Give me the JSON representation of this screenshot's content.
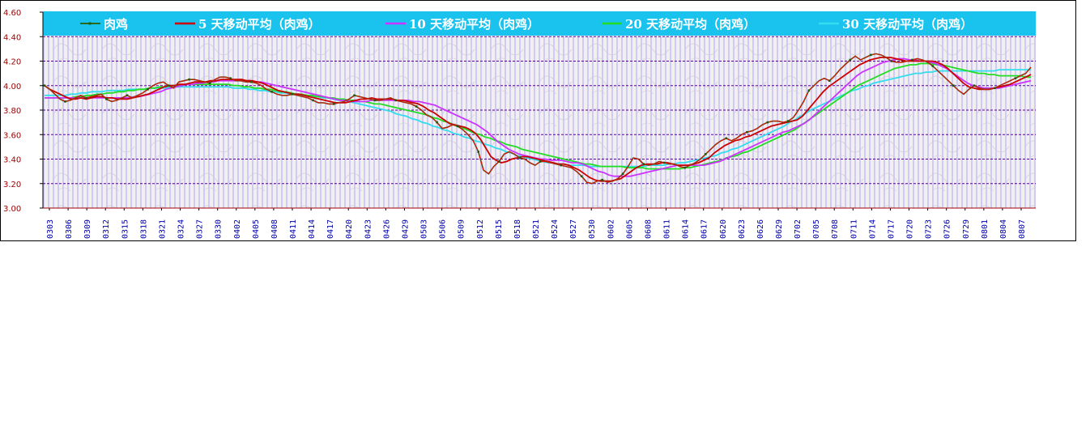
{
  "chart_data": {
    "type": "line",
    "title": "",
    "xlabel": "",
    "ylabel": "",
    "ylim": [
      3.0,
      4.6
    ],
    "yticks": [
      "3.00",
      "3.20",
      "3.40",
      "3.60",
      "3.80",
      "4.00",
      "4.20",
      "4.40",
      "4.60"
    ],
    "x_tick_labels": [
      "0303",
      "0306",
      "0309",
      "0312",
      "0315",
      "0318",
      "0321",
      "0324",
      "0327",
      "0330",
      "0402",
      "0405",
      "0408",
      "0411",
      "0414",
      "0417",
      "0420",
      "0423",
      "0426",
      "0429",
      "0503",
      "0506",
      "0509",
      "0512",
      "0515",
      "0518",
      "0521",
      "0524",
      "0527",
      "0530",
      "0602",
      "0605",
      "0608",
      "0611",
      "0614",
      "0617",
      "0620",
      "0623",
      "0626",
      "0629",
      "0702",
      "0705",
      "0708",
      "0711",
      "0714",
      "0717",
      "0720",
      "0723",
      "0726",
      "0729",
      "0801",
      "0804",
      "0807"
    ],
    "grid": true,
    "background_bars": true,
    "legend_position": "top",
    "series": [
      {
        "name": "肉鸡",
        "color": "#ff0000",
        "values": [
          4.0,
          3.97,
          3.93,
          3.89,
          3.87,
          3.88,
          3.9,
          3.92,
          3.9,
          3.91,
          3.92,
          3.93,
          3.89,
          3.87,
          3.88,
          3.9,
          3.92,
          3.9,
          3.92,
          3.94,
          3.97,
          4.0,
          4.02,
          4.03,
          4.0,
          3.98,
          4.03,
          4.04,
          4.05,
          4.05,
          4.04,
          4.03,
          4.02,
          4.05,
          4.07,
          4.07,
          4.06,
          4.04,
          4.04,
          4.03,
          4.03,
          4.02,
          4.0,
          3.97,
          3.95,
          3.93,
          3.92,
          3.92,
          3.93,
          3.92,
          3.91,
          3.9,
          3.88,
          3.86,
          3.86,
          3.85,
          3.85,
          3.86,
          3.87,
          3.89,
          3.92,
          3.91,
          3.9,
          3.89,
          3.88,
          3.88,
          3.89,
          3.9,
          3.88,
          3.87,
          3.86,
          3.85,
          3.83,
          3.8,
          3.76,
          3.74,
          3.7,
          3.65,
          3.66,
          3.68,
          3.67,
          3.64,
          3.6,
          3.55,
          3.46,
          3.31,
          3.28,
          3.34,
          3.38,
          3.44,
          3.46,
          3.44,
          3.41,
          3.4,
          3.37,
          3.35,
          3.38,
          3.38,
          3.37,
          3.36,
          3.35,
          3.34,
          3.33,
          3.3,
          3.26,
          3.21,
          3.2,
          3.22,
          3.23,
          3.21,
          3.22,
          3.24,
          3.28,
          3.34,
          3.41,
          3.4,
          3.36,
          3.35,
          3.36,
          3.38,
          3.37,
          3.36,
          3.36,
          3.34,
          3.33,
          3.35,
          3.37,
          3.4,
          3.44,
          3.48,
          3.52,
          3.55,
          3.57,
          3.55,
          3.57,
          3.6,
          3.62,
          3.63,
          3.65,
          3.68,
          3.7,
          3.71,
          3.71,
          3.7,
          3.71,
          3.74,
          3.8,
          3.87,
          3.96,
          4.0,
          4.04,
          4.06,
          4.04,
          4.08,
          4.13,
          4.17,
          4.21,
          4.24,
          4.21,
          4.23,
          4.25,
          4.26,
          4.25,
          4.23,
          4.2,
          4.19,
          4.19,
          4.2,
          4.21,
          4.22,
          4.21,
          4.19,
          4.16,
          4.12,
          4.08,
          4.04,
          4.0,
          3.96,
          3.93,
          3.97,
          4.0,
          3.98,
          3.97,
          3.97,
          3.98,
          4.0,
          4.02,
          4.04,
          4.06,
          4.08,
          4.1,
          4.15
        ]
      },
      {
        "name": "5 天移动平均（肉鸡）",
        "color": "#cc0000",
        "values": [
          4.0,
          3.97,
          3.95,
          3.93,
          3.91,
          3.89,
          3.89,
          3.9,
          3.89,
          3.9,
          3.91,
          3.91,
          3.9,
          3.9,
          3.89,
          3.89,
          3.89,
          3.9,
          3.91,
          3.92,
          3.93,
          3.95,
          3.97,
          3.99,
          4.0,
          4.0,
          4.01,
          4.01,
          4.02,
          4.03,
          4.03,
          4.03,
          4.04,
          4.04,
          4.05,
          4.05,
          4.05,
          4.05,
          4.05,
          4.04,
          4.04,
          4.03,
          4.02,
          4.0,
          3.98,
          3.96,
          3.95,
          3.94,
          3.93,
          3.93,
          3.92,
          3.91,
          3.9,
          3.89,
          3.88,
          3.87,
          3.86,
          3.86,
          3.86,
          3.87,
          3.88,
          3.89,
          3.89,
          3.9,
          3.89,
          3.89,
          3.89,
          3.89,
          3.88,
          3.88,
          3.87,
          3.86,
          3.85,
          3.83,
          3.8,
          3.78,
          3.75,
          3.72,
          3.69,
          3.68,
          3.67,
          3.66,
          3.64,
          3.61,
          3.56,
          3.49,
          3.42,
          3.39,
          3.37,
          3.38,
          3.4,
          3.41,
          3.42,
          3.42,
          3.41,
          3.4,
          3.39,
          3.38,
          3.37,
          3.36,
          3.36,
          3.35,
          3.33,
          3.31,
          3.28,
          3.25,
          3.23,
          3.22,
          3.22,
          3.22,
          3.23,
          3.24,
          3.27,
          3.3,
          3.33,
          3.35,
          3.36,
          3.36,
          3.36,
          3.37,
          3.37,
          3.36,
          3.35,
          3.35,
          3.35,
          3.36,
          3.37,
          3.39,
          3.41,
          3.45,
          3.48,
          3.51,
          3.53,
          3.55,
          3.56,
          3.58,
          3.59,
          3.61,
          3.63,
          3.65,
          3.67,
          3.68,
          3.69,
          3.7,
          3.71,
          3.72,
          3.75,
          3.8,
          3.85,
          3.9,
          3.95,
          3.99,
          4.02,
          4.05,
          4.08,
          4.11,
          4.14,
          4.17,
          4.19,
          4.21,
          4.22,
          4.23,
          4.23,
          4.23,
          4.22,
          4.21,
          4.2,
          4.2,
          4.2,
          4.2,
          4.2,
          4.2,
          4.19,
          4.17,
          4.14,
          4.1,
          4.06,
          4.02,
          3.99,
          3.98,
          3.97,
          3.97,
          3.97,
          3.98,
          3.99,
          4.0,
          4.01,
          4.03,
          4.05,
          4.07,
          4.09
        ]
      },
      {
        "name": "10 天移动平均（肉鸡）",
        "color": "#cc33ff",
        "values": [
          3.9,
          3.9,
          3.9,
          3.9,
          3.9,
          3.9,
          3.9,
          3.9,
          3.9,
          3.9,
          3.9,
          3.9,
          3.9,
          3.9,
          3.9,
          3.9,
          3.9,
          3.91,
          3.91,
          3.92,
          3.93,
          3.94,
          3.95,
          3.97,
          3.98,
          3.99,
          4.0,
          4.01,
          4.01,
          4.02,
          4.02,
          4.03,
          4.03,
          4.04,
          4.04,
          4.04,
          4.04,
          4.04,
          4.04,
          4.04,
          4.03,
          4.03,
          4.02,
          4.01,
          4.0,
          3.99,
          3.98,
          3.97,
          3.96,
          3.95,
          3.94,
          3.93,
          3.92,
          3.91,
          3.9,
          3.89,
          3.88,
          3.88,
          3.87,
          3.87,
          3.87,
          3.87,
          3.88,
          3.88,
          3.88,
          3.88,
          3.88,
          3.88,
          3.88,
          3.88,
          3.87,
          3.87,
          3.86,
          3.85,
          3.84,
          3.82,
          3.8,
          3.78,
          3.76,
          3.74,
          3.72,
          3.7,
          3.68,
          3.65,
          3.62,
          3.58,
          3.54,
          3.51,
          3.48,
          3.46,
          3.44,
          3.43,
          3.42,
          3.41,
          3.4,
          3.4,
          3.39,
          3.39,
          3.39,
          3.38,
          3.37,
          3.37,
          3.36,
          3.34,
          3.32,
          3.3,
          3.29,
          3.27,
          3.26,
          3.26,
          3.26,
          3.26,
          3.27,
          3.28,
          3.29,
          3.3,
          3.31,
          3.32,
          3.33,
          3.34,
          3.35,
          3.35,
          3.35,
          3.35,
          3.35,
          3.35,
          3.36,
          3.37,
          3.38,
          3.4,
          3.42,
          3.44,
          3.46,
          3.48,
          3.5,
          3.52,
          3.54,
          3.56,
          3.58,
          3.6,
          3.62,
          3.63,
          3.65,
          3.67,
          3.69,
          3.72,
          3.76,
          3.8,
          3.84,
          3.88,
          3.92,
          3.96,
          4.0,
          4.04,
          4.08,
          4.11,
          4.13,
          4.15,
          4.17,
          4.19,
          4.2,
          4.21,
          4.22,
          4.22,
          4.21,
          4.21,
          4.2,
          4.2,
          4.19,
          4.18,
          4.16,
          4.14,
          4.11,
          4.08,
          4.05,
          4.02,
          4.0,
          3.99,
          3.98,
          3.98,
          3.98,
          3.98,
          3.99,
          4.0,
          4.01,
          4.02,
          4.03,
          4.04
        ]
      },
      {
        "name": "20 天移动平均（肉鸡）",
        "color": "#22dd22",
        "values": [
          3.9,
          3.9,
          3.9,
          3.9,
          3.9,
          3.9,
          3.91,
          3.91,
          3.92,
          3.92,
          3.93,
          3.93,
          3.94,
          3.94,
          3.95,
          3.95,
          3.96,
          3.96,
          3.97,
          3.97,
          3.98,
          3.98,
          3.99,
          3.99,
          4.0,
          4.0,
          4.0,
          4.01,
          4.01,
          4.01,
          4.01,
          4.01,
          4.01,
          4.01,
          4.01,
          4.01,
          4.0,
          4.0,
          3.99,
          3.99,
          3.98,
          3.98,
          3.97,
          3.97,
          3.96,
          3.95,
          3.95,
          3.94,
          3.93,
          3.93,
          3.92,
          3.92,
          3.91,
          3.91,
          3.9,
          3.9,
          3.89,
          3.89,
          3.88,
          3.88,
          3.87,
          3.87,
          3.86,
          3.85,
          3.85,
          3.84,
          3.83,
          3.82,
          3.81,
          3.8,
          3.79,
          3.78,
          3.77,
          3.76,
          3.74,
          3.73,
          3.71,
          3.7,
          3.68,
          3.66,
          3.65,
          3.63,
          3.61,
          3.6,
          3.58,
          3.57,
          3.55,
          3.54,
          3.52,
          3.51,
          3.5,
          3.48,
          3.47,
          3.46,
          3.45,
          3.44,
          3.43,
          3.42,
          3.41,
          3.4,
          3.39,
          3.38,
          3.37,
          3.36,
          3.36,
          3.35,
          3.34,
          3.34,
          3.34,
          3.34,
          3.34,
          3.33,
          3.33,
          3.33,
          3.33,
          3.32,
          3.32,
          3.32,
          3.32,
          3.32,
          3.32,
          3.32,
          3.33,
          3.33,
          3.34,
          3.35,
          3.36,
          3.37,
          3.38,
          3.39,
          3.41,
          3.42,
          3.43,
          3.45,
          3.46,
          3.48,
          3.5,
          3.52,
          3.54,
          3.56,
          3.58,
          3.6,
          3.62,
          3.64,
          3.67,
          3.7,
          3.73,
          3.76,
          3.79,
          3.82,
          3.85,
          3.88,
          3.91,
          3.94,
          3.97,
          4.0,
          4.02,
          4.04,
          4.06,
          4.08,
          4.1,
          4.12,
          4.14,
          4.15,
          4.16,
          4.17,
          4.17,
          4.18,
          4.18,
          4.18,
          4.17,
          4.17,
          4.16,
          4.15,
          4.14,
          4.13,
          4.12,
          4.11,
          4.1,
          4.1,
          4.09,
          4.09,
          4.08,
          4.08,
          4.08,
          4.08,
          4.08,
          4.07,
          4.07
        ]
      },
      {
        "name": "30 天移动平均（肉鸡）",
        "color": "#33ddee",
        "values": [
          3.92,
          3.92,
          3.92,
          3.92,
          3.92,
          3.93,
          3.93,
          3.94,
          3.94,
          3.95,
          3.95,
          3.95,
          3.96,
          3.96,
          3.96,
          3.96,
          3.97,
          3.97,
          3.97,
          3.97,
          3.98,
          3.98,
          3.98,
          3.98,
          3.99,
          3.99,
          3.99,
          3.99,
          3.99,
          3.99,
          3.99,
          3.99,
          3.99,
          3.99,
          3.99,
          3.99,
          3.98,
          3.98,
          3.98,
          3.97,
          3.97,
          3.96,
          3.96,
          3.95,
          3.95,
          3.94,
          3.94,
          3.93,
          3.93,
          3.92,
          3.92,
          3.91,
          3.91,
          3.9,
          3.9,
          3.89,
          3.88,
          3.88,
          3.87,
          3.86,
          3.85,
          3.84,
          3.83,
          3.82,
          3.81,
          3.8,
          3.79,
          3.77,
          3.76,
          3.75,
          3.73,
          3.72,
          3.7,
          3.69,
          3.67,
          3.66,
          3.64,
          3.63,
          3.61,
          3.6,
          3.58,
          3.57,
          3.55,
          3.54,
          3.52,
          3.51,
          3.49,
          3.48,
          3.46,
          3.45,
          3.43,
          3.42,
          3.41,
          3.4,
          3.39,
          3.38,
          3.37,
          3.37,
          3.36,
          3.36,
          3.35,
          3.35,
          3.35,
          3.35,
          3.34,
          3.34,
          3.34,
          3.34,
          3.34,
          3.34,
          3.34,
          3.34,
          3.34,
          3.34,
          3.34,
          3.35,
          3.35,
          3.35,
          3.35,
          3.36,
          3.36,
          3.37,
          3.37,
          3.38,
          3.39,
          3.4,
          3.41,
          3.42,
          3.43,
          3.45,
          3.46,
          3.48,
          3.49,
          3.51,
          3.53,
          3.55,
          3.57,
          3.59,
          3.61,
          3.63,
          3.65,
          3.67,
          3.7,
          3.72,
          3.75,
          3.77,
          3.8,
          3.82,
          3.84,
          3.86,
          3.88,
          3.9,
          3.92,
          3.94,
          3.96,
          3.97,
          3.99,
          4.0,
          4.02,
          4.03,
          4.04,
          4.05,
          4.06,
          4.07,
          4.08,
          4.09,
          4.1,
          4.1,
          4.11,
          4.11,
          4.12,
          4.12,
          4.12,
          4.12,
          4.12,
          4.12,
          4.12,
          4.12,
          4.12,
          4.12,
          4.12,
          4.12,
          4.13,
          4.13,
          4.13,
          4.13,
          4.13,
          4.13,
          4.13
        ]
      }
    ]
  }
}
